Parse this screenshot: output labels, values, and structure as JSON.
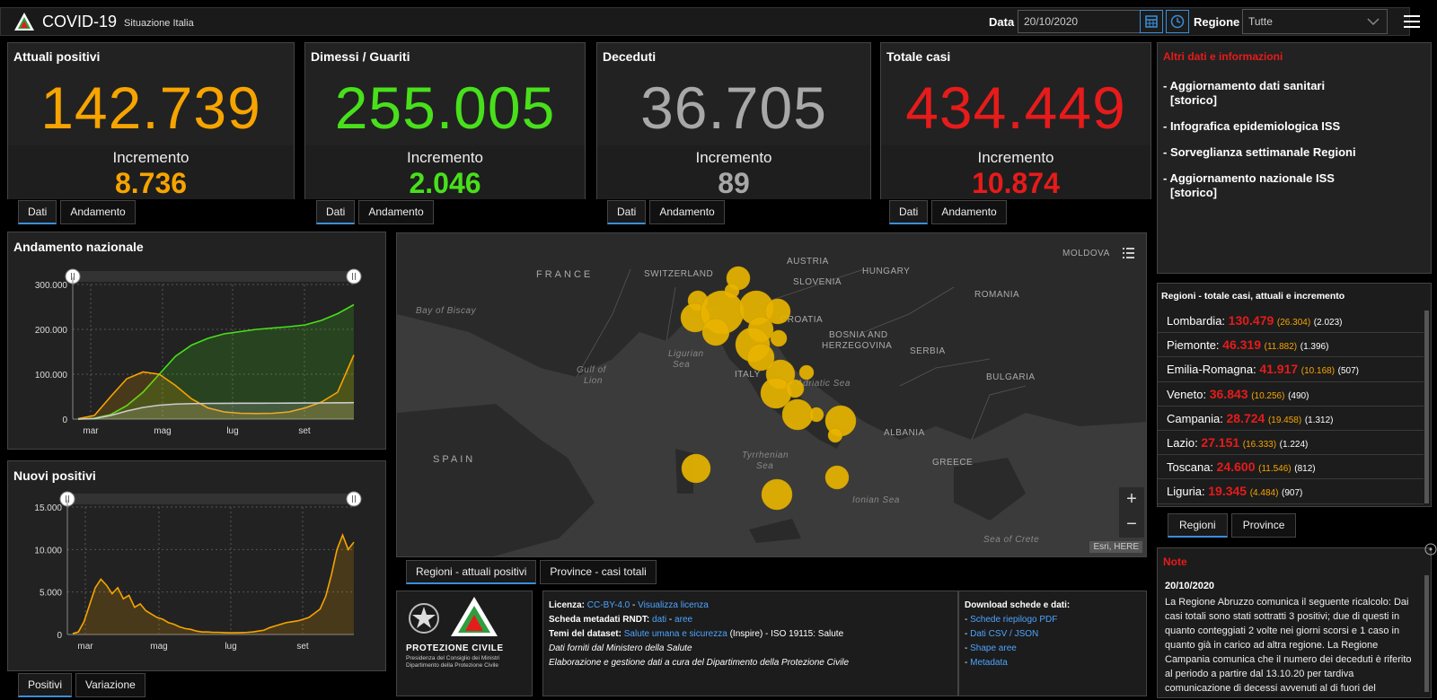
{
  "header": {
    "title": "COVID-19",
    "subtitle": "Situazione Italia",
    "date_label": "Data",
    "date_value": "20/10/2020",
    "region_label": "Regione",
    "region_value": "Tutte"
  },
  "kpis": [
    {
      "title": "Attuali positivi",
      "value": "142.739",
      "inc_label": "Incremento",
      "inc_value": "8.736",
      "color": "#f7a400"
    },
    {
      "title": "Dimessi / Guariti",
      "value": "255.005",
      "inc_label": "Incremento",
      "inc_value": "2.046",
      "color": "#48e01b"
    },
    {
      "title": "Deceduti",
      "value": "36.705",
      "inc_label": "Incremento",
      "inc_value": "89",
      "color": "#a8a8a8"
    },
    {
      "title": "Totale casi",
      "value": "434.449",
      "inc_label": "Incremento",
      "inc_value": "10.874",
      "color": "#e61b1b"
    }
  ],
  "kpi_tabs": {
    "dati": "Dati",
    "andamento": "Andamento"
  },
  "info": {
    "title": "Altri dati e informazioni",
    "items": [
      {
        "text": "- Aggiornamento dati sanitari",
        "sub": "[storico]"
      },
      {
        "text": "- Infografica epidemiologica ISS",
        "sub": ""
      },
      {
        "text": "- Sorveglianza settimanale Regioni",
        "sub": ""
      },
      {
        "text": "- Aggiornamento nazionale ISS",
        "sub": "[storico]"
      }
    ]
  },
  "regions": {
    "title": "Regioni - totale casi, attuali e incremento",
    "rows": [
      {
        "name": "Lombardia:",
        "total": "130.479",
        "current": "(26.304)",
        "inc": "(2.023)"
      },
      {
        "name": "Piemonte:",
        "total": "46.319",
        "current": "(11.882)",
        "inc": "(1.396)"
      },
      {
        "name": "Emilia-Romagna:",
        "total": "41.917",
        "current": "(10.168)",
        "inc": "(507)"
      },
      {
        "name": "Veneto:",
        "total": "36.843",
        "current": "(10.256)",
        "inc": "(490)"
      },
      {
        "name": "Campania:",
        "total": "28.724",
        "current": "(19.458)",
        "inc": "(1.312)"
      },
      {
        "name": "Lazio:",
        "total": "27.151",
        "current": "(16.333)",
        "inc": "(1.224)"
      },
      {
        "name": "Toscana:",
        "total": "24.600",
        "current": "(11.546)",
        "inc": "(812)"
      },
      {
        "name": "Liguria:",
        "total": "19.345",
        "current": "(4.484)",
        "inc": "(907)"
      }
    ],
    "tab_regioni": "Regioni",
    "tab_province": "Province"
  },
  "note": {
    "title": "Note",
    "date": "20/10/2020",
    "text": "La Regione Abruzzo comunica il seguente ricalcolo: Dai casi totali sono stati sottratti 3 positivi; due di questi in quanto conteggiati 2 volte nei giorni scorsi e 1 caso in quanto già in carico ad altra regione. La Regione Campania comunica che il numero dei deceduti è riferito al periodo a partire dal 13.10.20 per tardiva comunicazione di decessi avvenuti al di fuori del"
  },
  "map": {
    "labels": {
      "france": "FRANCE",
      "switzerland": "SWITZERLAND",
      "austria": "AUSTRIA",
      "slovenia": "SLOVENIA",
      "hungary": "HUNGARY",
      "romania": "ROMANIA",
      "moldova": "MOLDOVA",
      "croatia": "CROATIA",
      "bosnia": "BOSNIA AND",
      "herzegovina": "HERZEGOVINA",
      "serbia": "SERBIA",
      "bulgaria": "BULGARIA",
      "albania": "ALBANIA",
      "greece": "GREECE",
      "spain": "SPAIN",
      "biscay1": "Bay of Biscay",
      "lion1": "Gulf of",
      "lion2": "Lion",
      "ligurian1": "Ligurian",
      "ligurian2": "Sea",
      "adriatic": "Adriatic Sea",
      "tyrrhenian1": "Tyrrhenian",
      "tyrrhenian2": "Sea",
      "ionian": "Ionian Sea",
      "crete": "Sea of Crete",
      "italy": "ITALY"
    },
    "attribution": "Esri, HERE",
    "zoom_in": "+",
    "zoom_out": "−",
    "tab_regioni": "Regioni - attuali positivi",
    "tab_province": "Province - casi totali"
  },
  "chart_data": [
    {
      "type": "area",
      "title": "Andamento nazionale",
      "x_ticks": [
        "mar",
        "mag",
        "lug",
        "set"
      ],
      "y_ticks": [
        "300.000",
        "200.000",
        "100.000",
        "0"
      ],
      "ylim": [
        0,
        300000
      ],
      "series": [
        {
          "color": "#48e01b",
          "values": [
            0,
            2000,
            10000,
            30000,
            60000,
            100000,
            140000,
            165000,
            180000,
            190000,
            195000,
            200000,
            203000,
            206000,
            210000,
            220000,
            235000,
            255005
          ]
        },
        {
          "color": "#f7a400",
          "values": [
            1000,
            8000,
            50000,
            90000,
            105000,
            100000,
            75000,
            45000,
            25000,
            16000,
            13000,
            12500,
            13000,
            16000,
            25000,
            38000,
            60000,
            142739
          ]
        },
        {
          "color": "#cccccc",
          "values": [
            0,
            1000,
            8000,
            18000,
            26000,
            31000,
            33500,
            34500,
            35000,
            35200,
            35300,
            35400,
            35500,
            35600,
            35800,
            36000,
            36300,
            36705
          ]
        }
      ]
    },
    {
      "type": "area",
      "title": "Nuovi positivi",
      "x_ticks": [
        "mar",
        "mag",
        "lug",
        "set"
      ],
      "y_ticks": [
        "15.000",
        "10.000",
        "5.000",
        "0"
      ],
      "ylim": [
        0,
        15000
      ],
      "series": [
        {
          "color": "#f7a400",
          "values": [
            100,
            300,
            1500,
            3500,
            5500,
            6500,
            5800,
            4800,
            5500,
            4200,
            4600,
            3200,
            3600,
            2800,
            2400,
            2000,
            1800,
            1400,
            1200,
            900,
            700,
            600,
            400,
            300,
            300,
            250,
            250,
            220,
            200,
            200,
            220,
            250,
            300,
            400,
            500,
            800,
            1000,
            1200,
            1400,
            1500,
            1600,
            1800,
            2000,
            2500,
            3000,
            4500,
            7000,
            10000,
            11700,
            10000,
            10874
          ]
        }
      ]
    }
  ],
  "chart_tabs": {
    "positivi": "Positivi",
    "variazione": "Variazione"
  },
  "footer": {
    "org1": "PROTEZIONE CIVILE",
    "org2": "Presidenza del Consiglio dei Ministri",
    "org3": "Dipartimento della Protezione Civile",
    "licenza_label": "Licenza:",
    "licenza_value": "CC-BY-4.0",
    "licenza_link": "Visualizza licenza",
    "scheda_label": "Scheda metadati RNDT:",
    "scheda_dati": "dati",
    "scheda_aree": "aree",
    "temi_label": "Temi del dataset:",
    "temi_value": "Salute umana e sicurezza",
    "temi_rest": "(Inspire) - ISO 19115:",
    "temi_salute": "Salute",
    "dati_forniti": "Dati forniti dal Ministero della Salute",
    "elaborazione": "Elaborazione e gestione dati a cura del Dipartimento della Protezione Civile",
    "download_title": "Download schede e dati:",
    "downloads": [
      "Schede riepilogo PDF",
      "Dati CSV / JSON",
      "Shape aree",
      "Metadata"
    ]
  }
}
